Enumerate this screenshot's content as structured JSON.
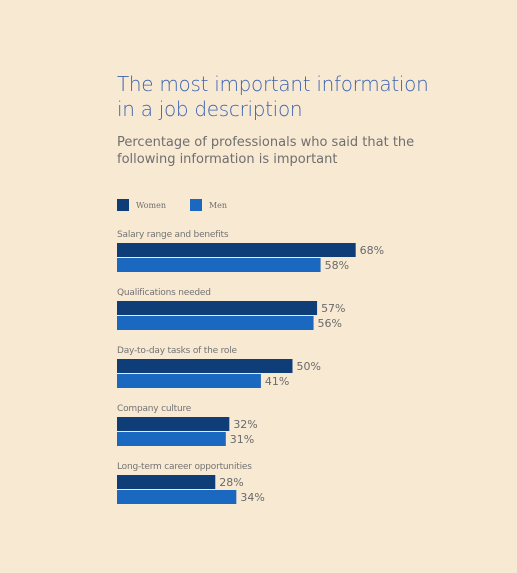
{
  "chart_data": {
    "type": "bar",
    "orientation": "horizontal",
    "title": "The most important information in a job description",
    "subtitle": "Percentage of professionals who said that the following information is important",
    "categories": [
      "Salary range and benefits",
      "Qualifications needed",
      "Day-to-day tasks of the role",
      "Company culture",
      "Long-term career opportunities"
    ],
    "series": [
      {
        "name": "Women",
        "color": "#0f3d78",
        "values": [
          68,
          57,
          50,
          32,
          28
        ]
      },
      {
        "name": "Men",
        "color": "#1b68c1",
        "values": [
          58,
          56,
          41,
          31,
          34
        ]
      }
    ],
    "value_suffix": "%",
    "xlim": [
      0,
      100
    ],
    "legend_position": "top-left",
    "grid": false
  }
}
